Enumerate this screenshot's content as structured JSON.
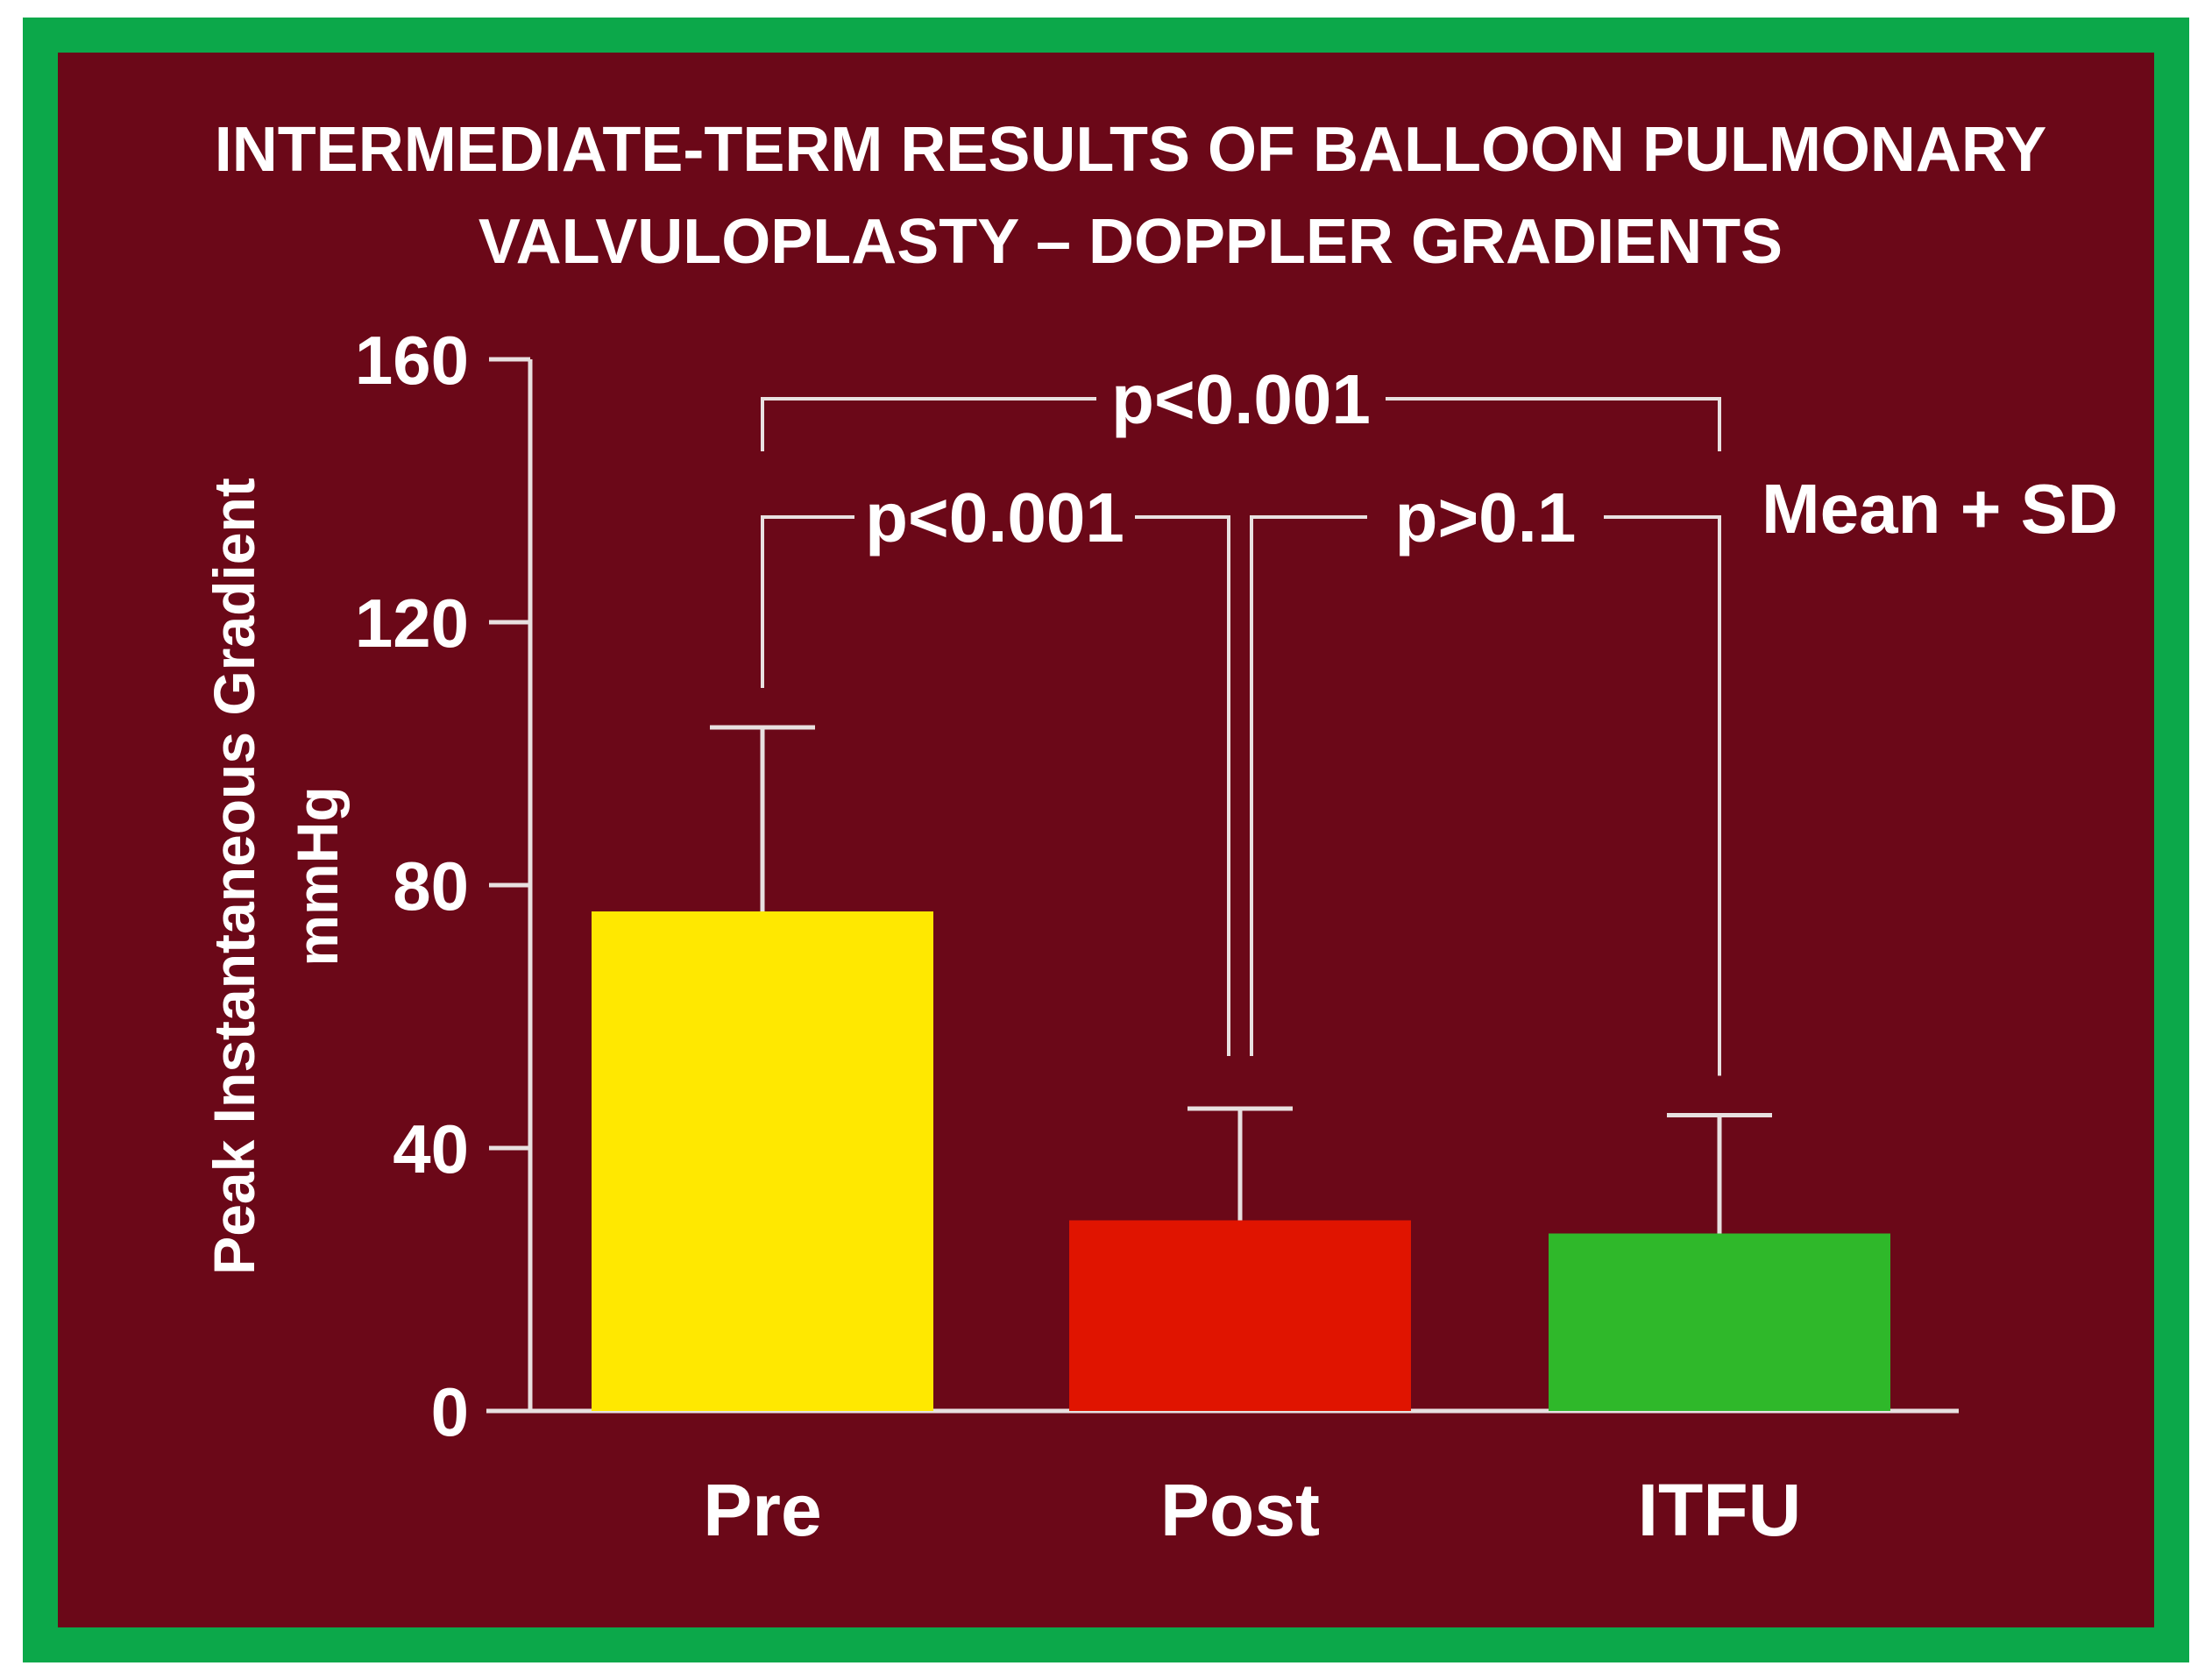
{
  "colors": {
    "frame": "#0ca84a",
    "background": "#6b0818",
    "text": "#ffffff",
    "axis": "#e8e0e0"
  },
  "chart_data": {
    "type": "bar",
    "title": "INTERMEDIATE-TERM RESULTS OF BALLOON PULMONARY VALVULOPLASTY – DOPPLER GRADIENTS",
    "title_lines": [
      "INTERMEDIATE-TERM RESULTS OF BALLOON PULMONARY",
      "VALVULOPLASTY – DOPPLER GRADIENTS"
    ],
    "ylabel": "Peak Instantaneous Gradient",
    "ylabel_unit": "mmHg",
    "xlabel": "",
    "ylim": [
      0,
      160
    ],
    "yticks": [
      0,
      40,
      80,
      120,
      160
    ],
    "categories": [
      "Pre",
      "Post",
      "ITFU"
    ],
    "values": [
      76,
      29,
      27
    ],
    "sd_upper": [
      104,
      46,
      45
    ],
    "bar_colors": [
      "#ffe800",
      "#e01400",
      "#2fb82a"
    ],
    "legend_note": "Mean + SD",
    "grid": false,
    "comparisons": [
      {
        "from": "Pre",
        "to": "ITFU",
        "label": "p<0.001",
        "y_level": 154
      },
      {
        "from": "Pre",
        "to": "Post",
        "label": "p<0.001",
        "y_level": 136
      },
      {
        "from": "Post",
        "to": "ITFU",
        "label": "p>0.1",
        "y_level": 136
      }
    ]
  }
}
